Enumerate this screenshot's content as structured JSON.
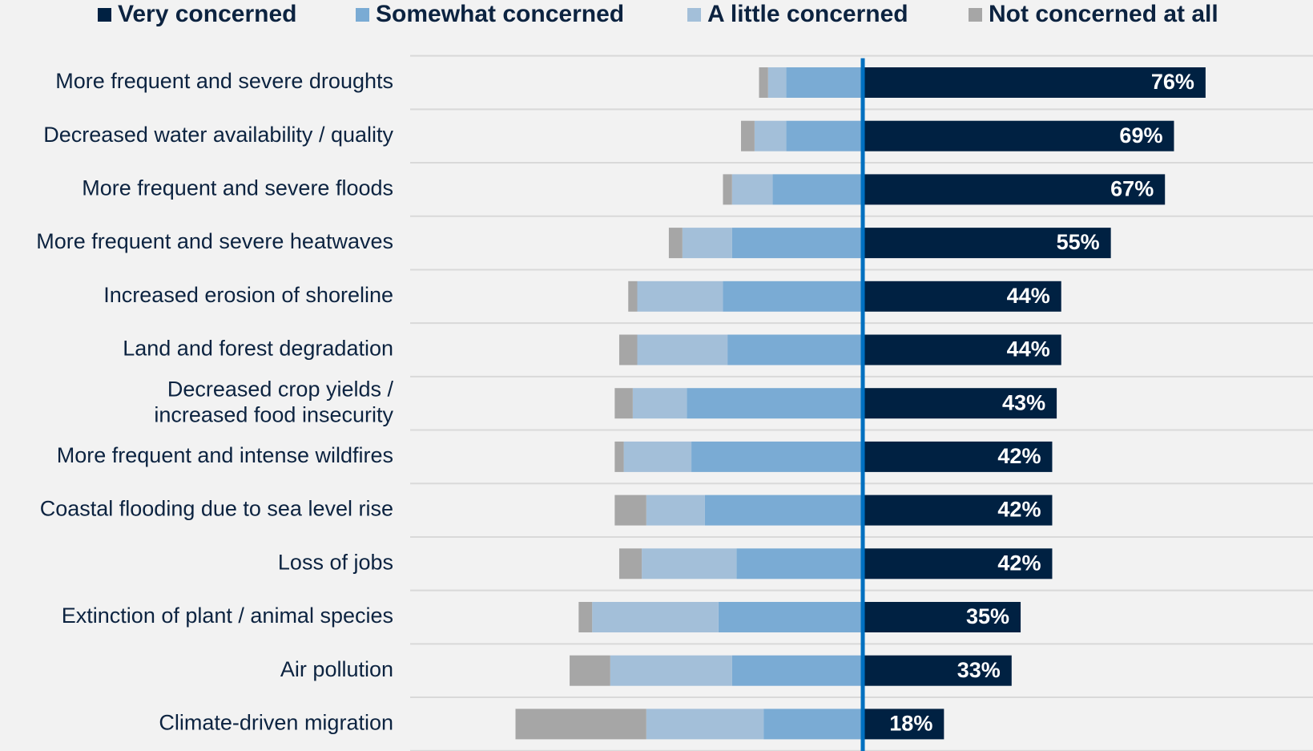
{
  "legend": [
    {
      "label": "Very concerned",
      "color": "#002142"
    },
    {
      "label": "Somewhat concerned",
      "color": "#7aabd4"
    },
    {
      "label": "A little concerned",
      "color": "#a3bfd9"
    },
    {
      "label": "Not concerned at all",
      "color": "#a6a6a6"
    }
  ],
  "chart_data": {
    "type": "bar",
    "orientation": "horizontal",
    "stacking": "diverging",
    "categories": [
      "More frequent and severe droughts",
      "Decreased water availability / quality",
      "More frequent and severe floods",
      "More frequent and severe heatwaves",
      "Increased erosion of shoreline",
      "Land and forest degradation",
      "Decreased crop yields / increased food insecurity",
      "More frequent and intense wildfires",
      "Coastal flooding due to sea level rise",
      "Loss of jobs",
      "Extinction of plant / animal species",
      "Air pollution",
      "Climate-driven migration"
    ],
    "category_lines": [
      [
        "More frequent and severe droughts"
      ],
      [
        "Decreased water availability / quality"
      ],
      [
        "More frequent and severe floods"
      ],
      [
        "More frequent and severe heatwaves"
      ],
      [
        "Increased erosion of shoreline"
      ],
      [
        "Land and forest degradation"
      ],
      [
        "Decreased crop yields /",
        "increased food insecurity"
      ],
      [
        "More frequent and intense wildfires"
      ],
      [
        "Coastal flooding due to sea level rise"
      ],
      [
        "Loss of jobs"
      ],
      [
        "Extinction of plant / animal species"
      ],
      [
        "Air pollution"
      ],
      [
        "Climate-driven migration"
      ]
    ],
    "series": [
      {
        "name": "Very concerned",
        "color": "#002142",
        "side": "right",
        "values": [
          76,
          69,
          67,
          55,
          44,
          44,
          43,
          42,
          42,
          42,
          35,
          33,
          18
        ]
      },
      {
        "name": "Somewhat concerned",
        "color": "#7aabd4",
        "side": "left",
        "values": [
          17,
          17,
          20,
          29,
          31,
          30,
          39,
          38,
          35,
          28,
          32,
          29,
          22
        ]
      },
      {
        "name": "A little concerned",
        "color": "#a3bfd9",
        "side": "left",
        "values": [
          4,
          7,
          9,
          11,
          19,
          20,
          12,
          15,
          13,
          21,
          28,
          27,
          26
        ]
      },
      {
        "name": "Not concerned at all",
        "color": "#a6a6a6",
        "side": "left",
        "values": [
          2,
          3,
          2,
          3,
          2,
          4,
          4,
          2,
          7,
          5,
          3,
          9,
          29
        ]
      }
    ],
    "data_labels": [
      "76%",
      "69%",
      "67%",
      "55%",
      "44%",
      "44%",
      "43%",
      "42%",
      "42%",
      "42%",
      "35%",
      "33%",
      "18%"
    ],
    "xlim": [
      -80,
      100
    ],
    "legend_position": "top",
    "grid": false,
    "zero_line_color": "#0070c0",
    "row_separator_color": "#d9d9d9"
  }
}
